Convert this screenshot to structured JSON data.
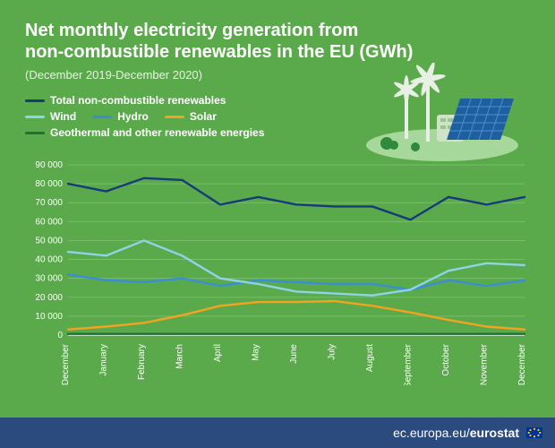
{
  "title_line1": "Net monthly electricity generation from",
  "title_line2": "non-combustible renewables in the EU (GWh)",
  "subtitle": "(December 2019-December 2020)",
  "legend": {
    "total": {
      "label": "Total non-combustible renewables",
      "color": "#163a7a"
    },
    "wind": {
      "label": "Wind",
      "color": "#8fd3e8"
    },
    "hydro": {
      "label": "Hydro",
      "color": "#3a8ed8"
    },
    "solar": {
      "label": "Solar",
      "color": "#f4a321"
    },
    "other": {
      "label": "Geothermal and other renewable energies",
      "color": "#1e6f3a"
    }
  },
  "chart": {
    "type": "line",
    "background": "#5aaa4b",
    "grid_color": "#79bd6b",
    "axis_color": "#ffffff",
    "axis_fontsize": 10,
    "axis_fontcolor": "#ffffff",
    "line_width": 2.4,
    "ylim": [
      0,
      90000
    ],
    "ytick_step": 10000,
    "ytick_labels": [
      "0",
      "10 000",
      "20 000",
      "30 000",
      "40 000",
      "50 000",
      "60 000",
      "70 000",
      "80 000",
      "90 000"
    ],
    "categories": [
      "December",
      "January",
      "February",
      "March",
      "April",
      "May",
      "June",
      "July",
      "August",
      "September",
      "October",
      "November",
      "December"
    ],
    "series": {
      "total": [
        80000,
        76000,
        83000,
        82000,
        69000,
        73000,
        69000,
        68000,
        68000,
        61000,
        73000,
        69000,
        73000
      ],
      "wind": [
        44000,
        42000,
        50000,
        42000,
        30000,
        27000,
        23000,
        22000,
        21000,
        24000,
        34000,
        38000,
        37000
      ],
      "hydro": [
        32000,
        29000,
        28000,
        30000,
        26000,
        29000,
        28000,
        27000,
        27000,
        24000,
        29000,
        26000,
        29000
      ],
      "solar": [
        3000,
        4500,
        6500,
        10500,
        15500,
        17500,
        17500,
        18000,
        15500,
        12000,
        8000,
        4500,
        3000
      ],
      "other": [
        600,
        600,
        600,
        600,
        600,
        600,
        600,
        600,
        600,
        600,
        600,
        600,
        600
      ]
    }
  },
  "footer": {
    "prefix": "ec.europa.eu/",
    "bold": "eurostat"
  },
  "illustration": {
    "bg_ellipse": "#a7d89b",
    "panel": "#1e5fa0",
    "panel_grid": "#4f8fd0",
    "turbine": "#e8f0e6",
    "building": "#cfe3c9",
    "bush": "#2f8a3e"
  },
  "style": {
    "card_bg": "#5aaa4b",
    "title_fontsize": 20,
    "subtitle_fontsize": 13,
    "legend_fontsize": 12,
    "footer_bg": "#2b4a7d"
  }
}
